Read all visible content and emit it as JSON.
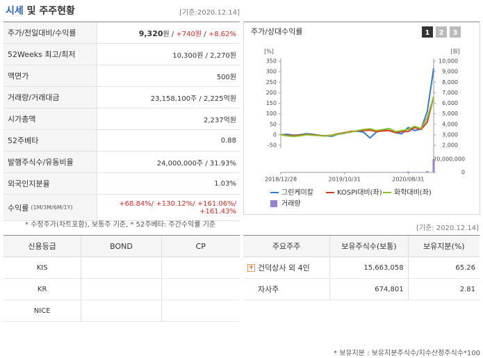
{
  "header": {
    "title_highlight": "시세",
    "title_rest": "및 주주현황",
    "date": "[기준:2020.12.14]"
  },
  "quote_table": {
    "rows": [
      {
        "label": "주가/전일대비/수익률",
        "value": [
          [
            {
              "text": "9,320",
              "bold": true
            },
            {
              "text": "원 / "
            },
            {
              "text": "+740원",
              "color": "#e0281e"
            },
            {
              "text": " / "
            },
            {
              "text": "+8.62%",
              "color": "#e0281e"
            }
          ]
        ]
      },
      {
        "label": "52Weeks 최고/최저",
        "value": [
          [
            {
              "text": "10,300원 / 2,270원"
            }
          ]
        ]
      },
      {
        "label": "액면가",
        "value": [
          [
            {
              "text": "500원"
            }
          ]
        ]
      },
      {
        "label": "거래량/거래대금",
        "value": [
          [
            {
              "text": "23,158,100주 / 2,225억원"
            }
          ]
        ]
      },
      {
        "label": "시가총액",
        "value": [
          [
            {
              "text": "2,237억원"
            }
          ]
        ]
      },
      {
        "label": "52주베타",
        "value": [
          [
            {
              "text": "0.88"
            }
          ]
        ]
      },
      {
        "label": "발행주식수/유동비율",
        "value": [
          [
            {
              "text": "24,000,000주 / 31.93%"
            }
          ]
        ]
      },
      {
        "label": "외국인지분율",
        "value": [
          [
            {
              "text": "1.03%"
            }
          ]
        ]
      },
      {
        "label": "수익률",
        "label_note": "(1M/3M/6M/1Y)",
        "value": [
          [
            {
              "text": "+68.84%/ +130.12%/ +161.06%/",
              "color": "#e0281e"
            }
          ],
          [
            {
              "text": "+161.43%",
              "color": "#e0281e"
            }
          ]
        ]
      }
    ],
    "footnote": "* 수정주가(차트포함), 보통주 기준, * 52주베타: 주간수익률 기준"
  },
  "chart_panel": {
    "title": "주가/상대수익률",
    "buttons": [
      "1",
      "2",
      "3"
    ],
    "active_button": 0,
    "chart_data": {
      "type": "line",
      "categories": [
        "2018/12/28",
        null,
        null,
        null,
        null,
        null,
        null,
        null,
        null,
        null,
        "2019/10/31",
        null,
        null,
        null,
        null,
        null,
        null,
        null,
        null,
        null,
        "2020/08/31",
        null,
        null,
        null,
        null
      ],
      "y_unit": "[%]",
      "y2_unit": "[원]",
      "ylim": [
        -50,
        350
      ],
      "yticks": [
        350,
        300,
        250,
        200,
        150,
        100,
        50,
        0,
        -50
      ],
      "y2lim": [
        2000,
        10000
      ],
      "y2ticks": [
        {
          "value": 10000,
          "label": "10,000"
        },
        {
          "value": 9000,
          "label": "9,000"
        },
        {
          "value": 8000,
          "label": "8,000"
        },
        {
          "value": 7000,
          "label": "7,000"
        },
        {
          "value": 6000,
          "label": "6,000"
        },
        {
          "value": 5000,
          "label": "5,000"
        },
        {
          "value": 4000,
          "label": "4,000"
        },
        {
          "value": 3000,
          "label": "3,000"
        },
        {
          "value": 2000,
          "label": "2,000"
        }
      ],
      "volume_lim": [
        0,
        20000000
      ],
      "volume_ticks": [
        {
          "value": 20000000,
          "label": "20,000,000"
        },
        0
      ],
      "series": [
        {
          "name": "그린케미칼",
          "color": "#2f7bd6",
          "axis": "y2",
          "values": [
            3000,
            3050,
            2950,
            3000,
            3100,
            3050,
            2950,
            2900,
            2850,
            3050,
            3150,
            3300,
            3350,
            3250,
            2700,
            3250,
            3450,
            3400,
            3200,
            3100,
            3700,
            3400,
            3550,
            5200,
            9320
          ]
        },
        {
          "name": "KOSPI대비(좌)",
          "color": "#d83a1e",
          "values": [
            0,
            -3,
            -5,
            -2,
            2,
            0,
            -3,
            -5,
            -2,
            5,
            10,
            15,
            18,
            20,
            22,
            15,
            18,
            20,
            10,
            15,
            15,
            35,
            25,
            60,
            180
          ]
        },
        {
          "name": "화학대비(좌)",
          "color": "#8cbf26",
          "values": [
            0,
            -5,
            -8,
            -5,
            0,
            -2,
            -4,
            -6,
            -3,
            3,
            8,
            12,
            20,
            25,
            28,
            20,
            25,
            30,
            15,
            20,
            25,
            40,
            30,
            80,
            180
          ]
        },
        {
          "name": "거래량",
          "color": "#9b7fd4",
          "axis": "volume",
          "values": [
            300000,
            300000,
            300000,
            300000,
            300000,
            300000,
            300000,
            300000,
            300000,
            300000,
            300000,
            300000,
            300000,
            300000,
            300000,
            300000,
            300000,
            300000,
            300000,
            300000,
            1500000,
            300000,
            300000,
            2000000,
            20000000
          ]
        }
      ]
    }
  },
  "credit_table": {
    "header": [
      "신용등급",
      "BOND",
      "CP"
    ],
    "rows": [
      "KIS",
      "KR",
      "NICE"
    ]
  },
  "holder_table": {
    "date": "[기준: 2020.12.14]",
    "header": [
      "주요주주",
      "보유주식수(보통)",
      "보유지분(%)"
    ],
    "rows": [
      {
        "name": "건덕상사 외 4인",
        "shares": "15,663,058",
        "ratio": "65.26",
        "expandable": true
      },
      {
        "name": "자사주",
        "shares": "674,801",
        "ratio": "2.81",
        "expandable": false
      }
    ],
    "footnote": "* 보유지분 : 보유지분주식수/지수산정주식수*100"
  }
}
